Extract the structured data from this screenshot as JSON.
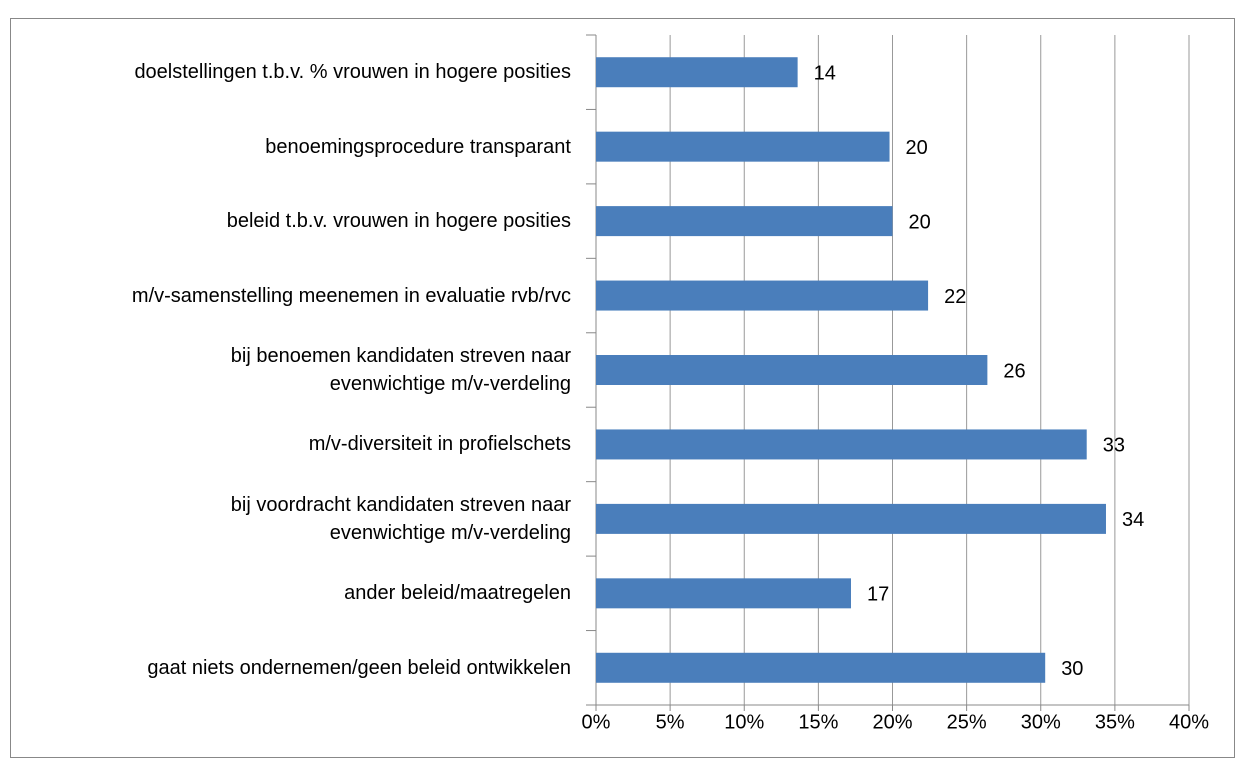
{
  "chart_data": {
    "type": "hbar",
    "categories": [
      "doelstellingen t.b.v. % vrouwen in hogere posities",
      "benoemingsprocedure transparant",
      "beleid t.b.v. vrouwen in hogere posities",
      "m/v-samenstelling meenemen in evaluatie rvb/rvc",
      "bij benoemen kandidaten streven naar\nevenwichtige m/v-verdeling",
      "m/v-diversiteit in profielschets",
      "bij voordracht kandidaten streven naar\nevenwichtige m/v-verdeling",
      "ander beleid/maatregelen",
      "gaat niets ondernemen/geen beleid ontwikkelen"
    ],
    "values": [
      13.6,
      19.8,
      20.0,
      22.4,
      26.4,
      33.1,
      34.4,
      17.2,
      30.3
    ],
    "value_labels": [
      "14",
      "20",
      "20",
      "22",
      "26",
      "33",
      "34",
      "17",
      "30"
    ],
    "color": "#4a7ebb",
    "xlim": [
      0,
      40
    ],
    "xticks": [
      {
        "value": 0,
        "label": "0%"
      },
      {
        "value": 5,
        "label": "5%"
      },
      {
        "value": 10,
        "label": "10%"
      },
      {
        "value": 15,
        "label": "15%"
      },
      {
        "value": 20,
        "label": "20%"
      },
      {
        "value": 25,
        "label": "25%"
      },
      {
        "value": 30,
        "label": "30%"
      },
      {
        "value": 35,
        "label": "35%"
      },
      {
        "value": 40,
        "label": "40%"
      }
    ],
    "grid": true
  }
}
